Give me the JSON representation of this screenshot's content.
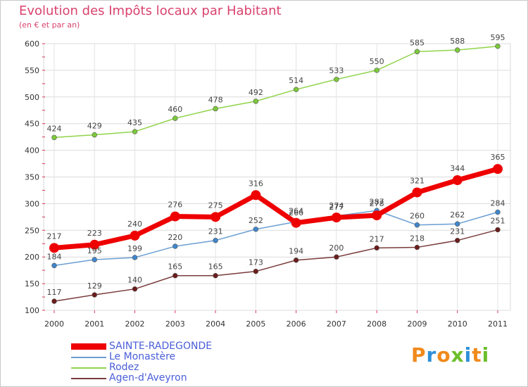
{
  "chart_data": {
    "type": "line",
    "title": "Evolution des Impôts locaux par Habitant",
    "subtitle": "(en € et par an)",
    "categories": [
      "2000",
      "2001",
      "2002",
      "2003",
      "2004",
      "2005",
      "2006",
      "2007",
      "2008",
      "2009",
      "2010",
      "2011"
    ],
    "ylim": [
      100,
      600
    ],
    "yticks": [
      100,
      150,
      200,
      250,
      300,
      350,
      400,
      450,
      500,
      550,
      600
    ],
    "grid": true,
    "legend_position": "bottom-left",
    "series": [
      {
        "name": "Rodez",
        "color": "#8fd44a",
        "dot": "#7cc93a",
        "values": [
          424,
          429,
          435,
          460,
          478,
          492,
          514,
          533,
          550,
          585,
          588,
          595
        ]
      },
      {
        "name": "Le Monastère",
        "color": "#6a9ed2",
        "dot": "#3f86cc",
        "values": [
          184,
          195,
          199,
          220,
          231,
          252,
          266,
          277,
          287,
          260,
          262,
          284
        ]
      },
      {
        "name": "Agen-d'Aveyron",
        "color": "#7a3b3b",
        "dot": "#6b1c1c",
        "values": [
          117,
          129,
          140,
          165,
          165,
          173,
          194,
          200,
          217,
          218,
          231,
          251
        ]
      },
      {
        "name": "SAINTE-RADEGONDE",
        "color": "#ee0000",
        "dot": "#ee0000",
        "values": [
          217,
          223,
          240,
          276,
          275,
          316,
          264,
          274,
          278,
          321,
          344,
          365
        ]
      }
    ],
    "legend_order": [
      "SAINTE-RADEGONDE",
      "Le Monastère",
      "Rodez",
      "Agen-d'Aveyron"
    ]
  },
  "brand": {
    "text": "Proxiti",
    "letters": [
      "P",
      "r",
      "o",
      "x",
      "i",
      "t",
      "i"
    ],
    "colors": [
      "#f08a1c",
      "#2f8fd8",
      "#f08a1c",
      "#6cbf2a",
      "#2f8fd8",
      "#f08a1c",
      "#6cbf2a"
    ]
  }
}
